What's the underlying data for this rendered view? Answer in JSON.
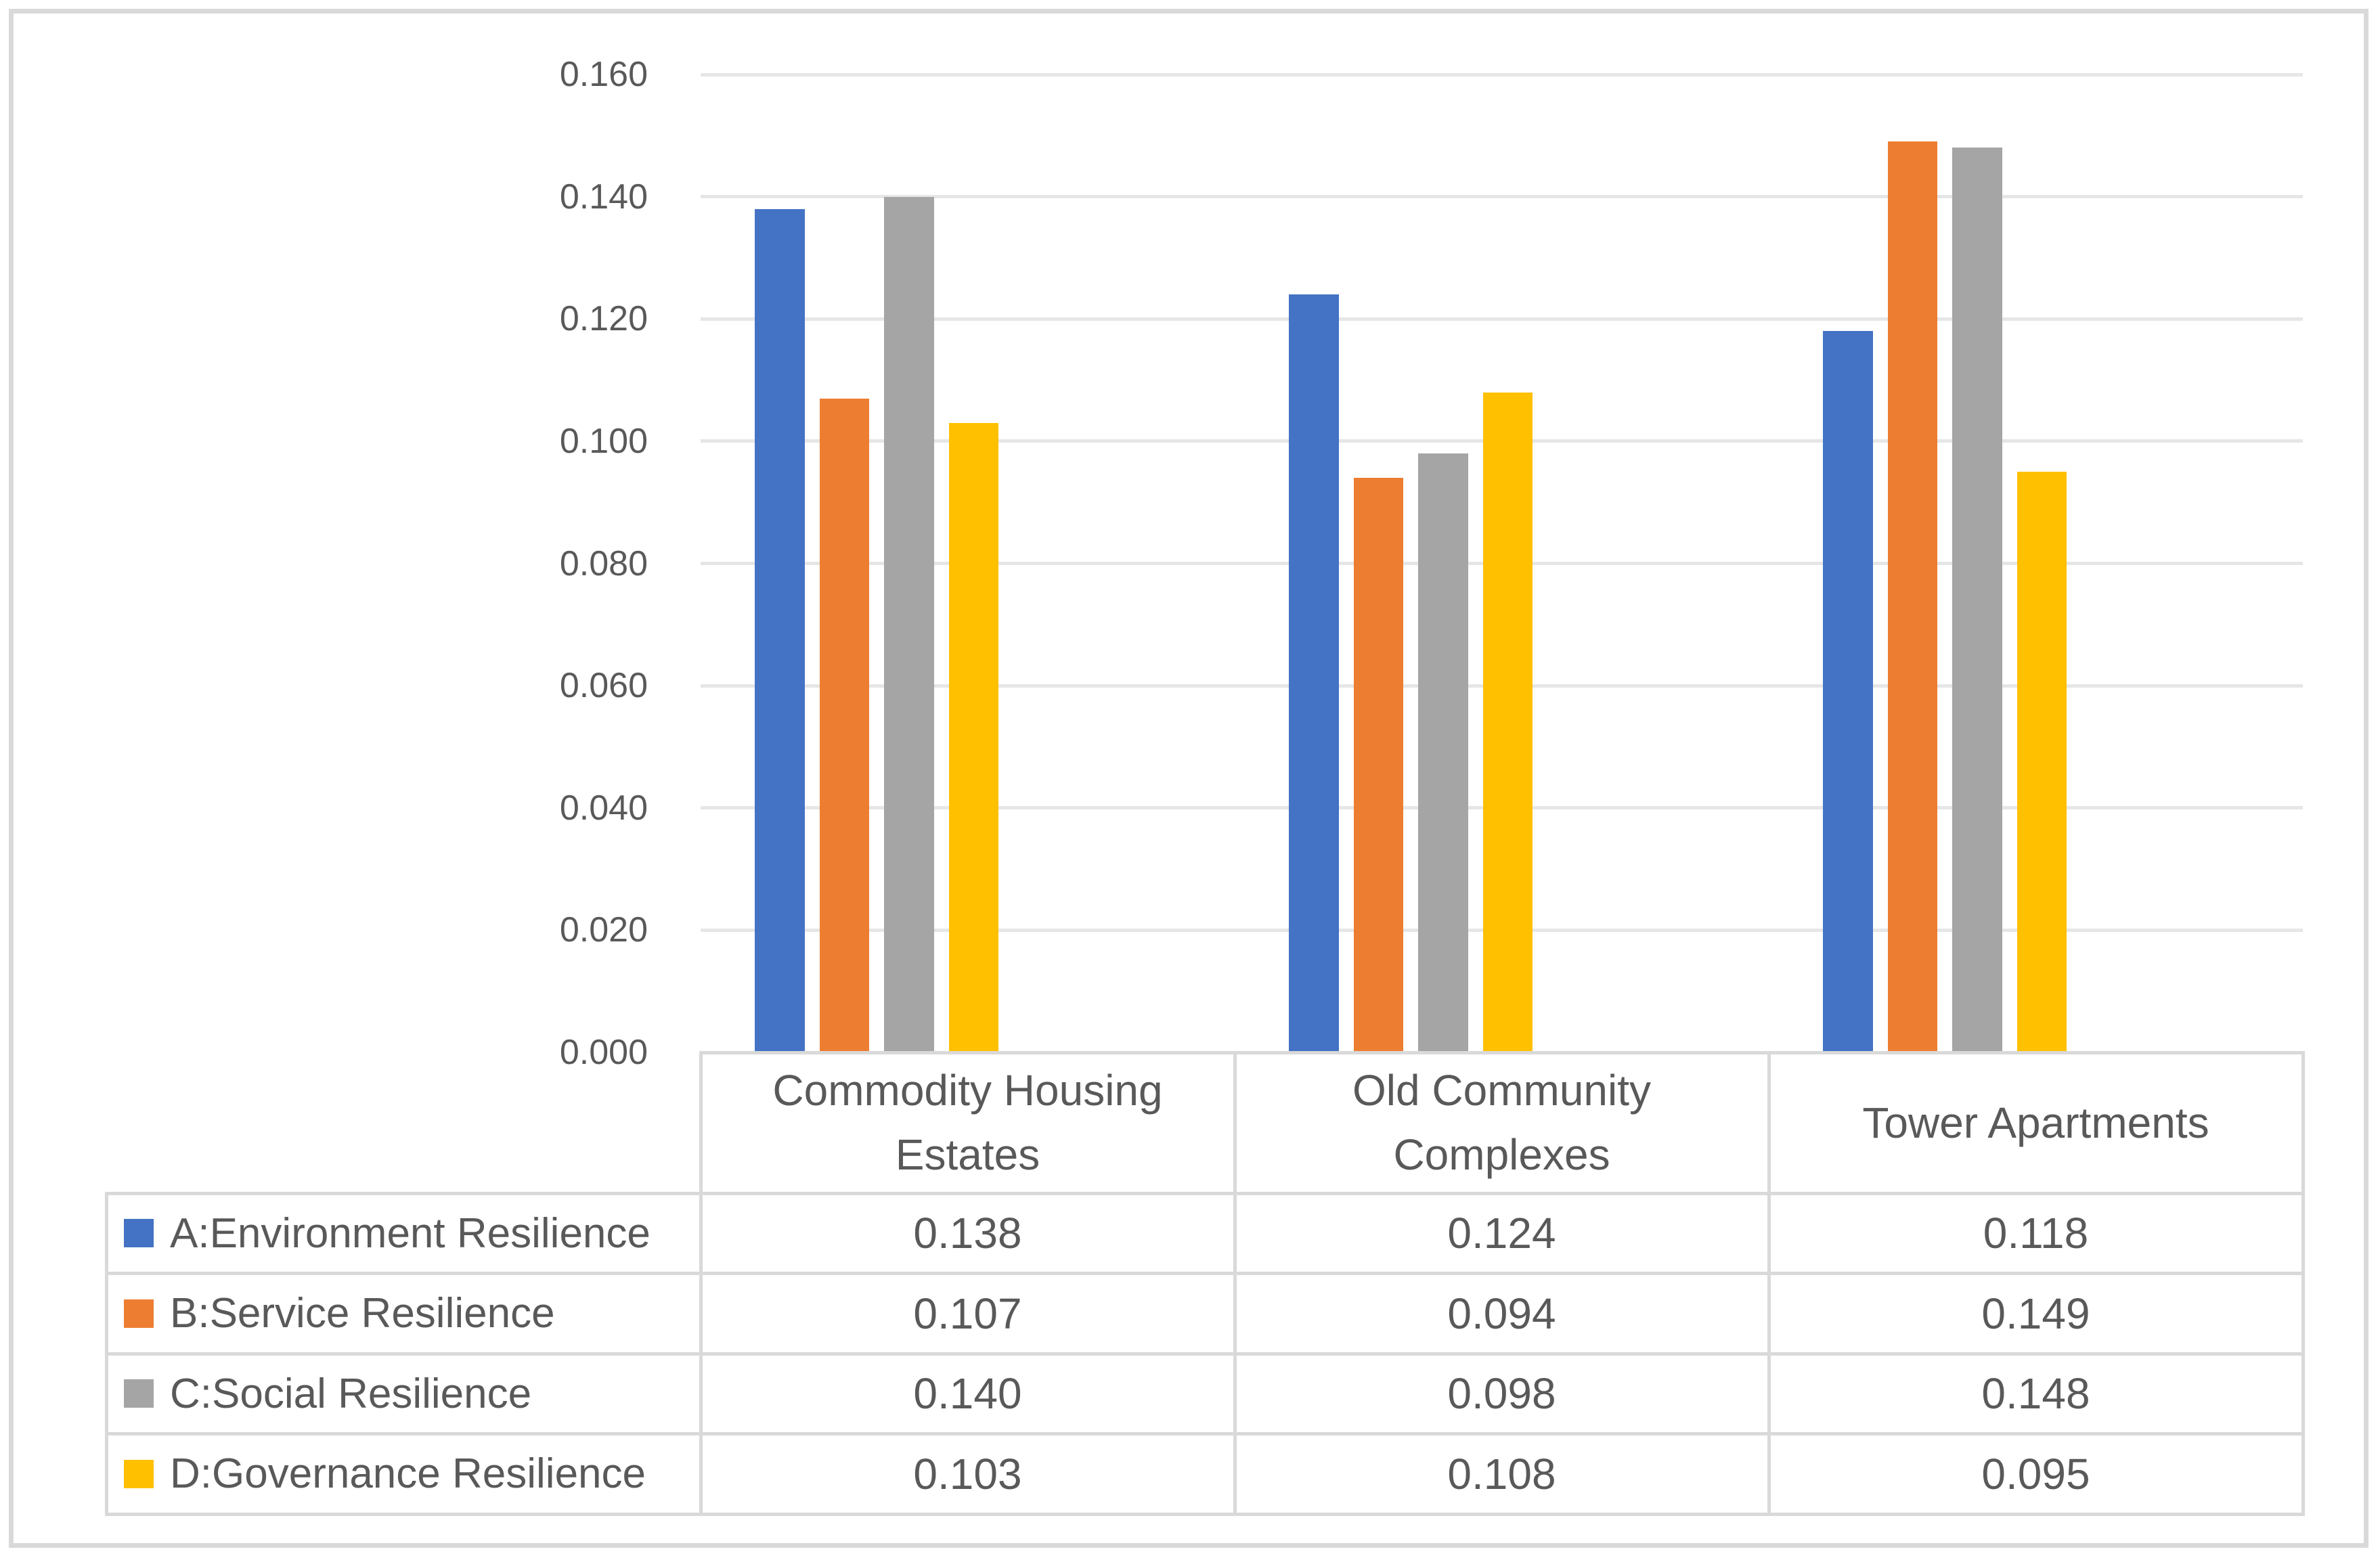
{
  "page": {
    "background": "#FFFFFF",
    "outer_border_color": "#D9D9D9"
  },
  "chart_data": {
    "type": "bar",
    "title": "",
    "xlabel": "",
    "ylabel": "",
    "categories": [
      "Commodity Housing Estates",
      "Old Community Complexes",
      "Tower Apartments"
    ],
    "series": [
      {
        "key": "A",
        "name": "A:Environment Resilience",
        "color": "#4472C4",
        "values": [
          0.138,
          0.124,
          0.118
        ]
      },
      {
        "key": "B",
        "name": "B:Service Resilience",
        "color": "#ED7D31",
        "values": [
          0.107,
          0.094,
          0.149
        ]
      },
      {
        "key": "C",
        "name": "C:Social Resilience",
        "color": "#A5A5A5",
        "values": [
          0.14,
          0.098,
          0.148
        ]
      },
      {
        "key": "D",
        "name": "D:Governance Resilience",
        "color": "#FFC000",
        "values": [
          0.103,
          0.108,
          0.095
        ]
      }
    ],
    "ylim": [
      0,
      0.16
    ],
    "ytick_step": 0.02,
    "yticks": [
      "0.160",
      "0.140",
      "0.120",
      "0.100",
      "0.080",
      "0.060",
      "0.040",
      "0.020",
      "0.000"
    ],
    "grid": true,
    "gridline_color": "#E6E6E6",
    "legend_position": "data-table-left",
    "text_color": "#595959",
    "value_format": "0.000"
  },
  "data_table": {
    "border_color": "#D9D9D9",
    "columns": [
      "Commodity Housing Estates",
      "Old Community Complexes",
      "Tower Apartments"
    ],
    "rows": [
      {
        "label": "A:Environment Resilience",
        "swatch_color": "#4472C4",
        "cells": [
          "0.138",
          "0.124",
          "0.118"
        ]
      },
      {
        "label": "B:Service Resilience",
        "swatch_color": "#ED7D31",
        "cells": [
          "0.107",
          "0.094",
          "0.149"
        ]
      },
      {
        "label": "C:Social Resilience",
        "swatch_color": "#A5A5A5",
        "cells": [
          "0.140",
          "0.098",
          "0.148"
        ]
      },
      {
        "label": "D:Governance Resilience",
        "swatch_color": "#FFC000",
        "cells": [
          "0.103",
          "0.108",
          "0.095"
        ]
      }
    ]
  }
}
